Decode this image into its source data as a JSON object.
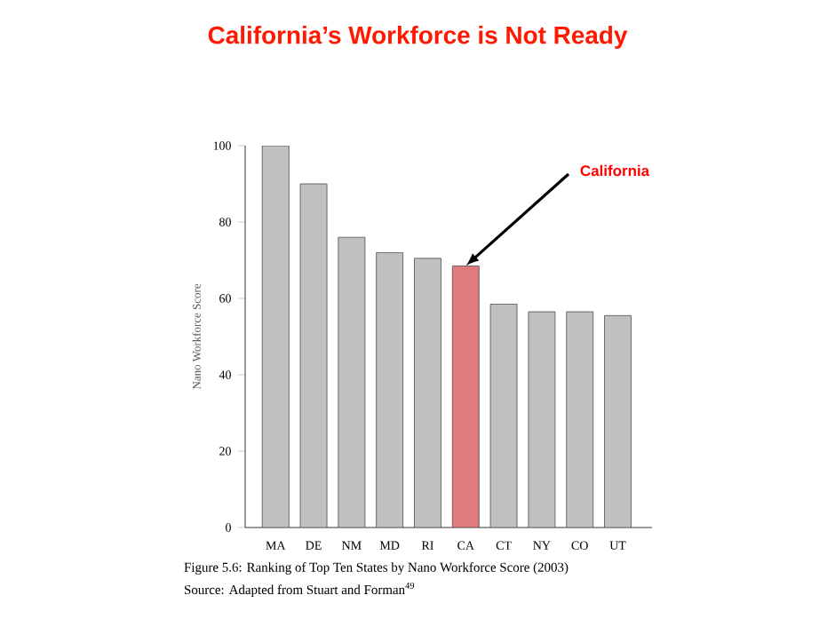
{
  "chart_data": {
    "type": "bar",
    "title": "California’s Workforce is Not Ready",
    "ylabel": "Nano Workforce Score",
    "categories": [
      "MA",
      "DE",
      "NM",
      "MD",
      "RI",
      "CA",
      "CT",
      "NY",
      "CO",
      "UT"
    ],
    "values": [
      100,
      90,
      76,
      72,
      70.5,
      68.5,
      58.5,
      56.5,
      56.5,
      55.5
    ],
    "colors": [
      "#c0c0c0",
      "#c0c0c0",
      "#c0c0c0",
      "#c0c0c0",
      "#c0c0c0",
      "#e07b7b",
      "#c0c0c0",
      "#c0c0c0",
      "#c0c0c0",
      "#c0c0c0"
    ],
    "ylim": [
      0,
      100
    ],
    "yticks": [
      0,
      20,
      40,
      60,
      80,
      100
    ],
    "annotations": [
      {
        "text": "California",
        "x": "CA",
        "y": 68.5
      },
      "Figure 5.6: Ranking of Top Ten States by Nano Workforce Score (2003)",
      "Source: Adapted from Stuart and Forman$^{49}$"
    ]
  }
}
